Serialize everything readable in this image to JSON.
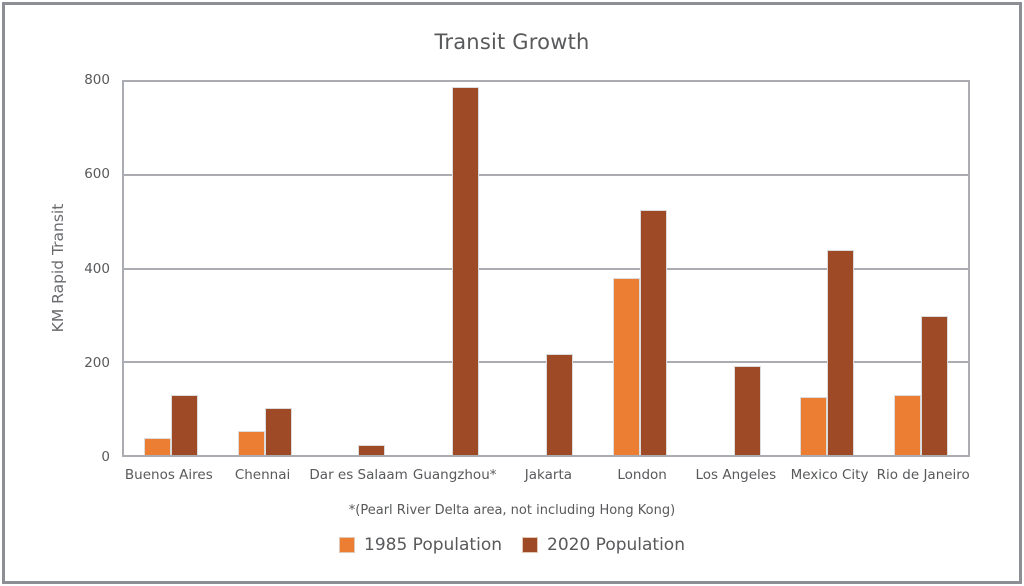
{
  "window": {
    "frame_border_color": "#8d8e94",
    "background_color": "#ffffff"
  },
  "colors": {
    "series_1985": "#EC7E33",
    "series_2020": "#9E4A26",
    "gridline": "#abacb2",
    "text": "#58595b"
  },
  "chart_data": {
    "type": "bar",
    "title": "Transit Growth",
    "ylabel": "KM Rapid Transit",
    "xlabel": "",
    "footnote": "*(Pearl River Delta area, not including Hong Kong)",
    "ylim": [
      0,
      800
    ],
    "yticks": [
      0,
      200,
      400,
      600,
      800
    ],
    "grid": true,
    "legend_position": "bottom",
    "categories": [
      "Buenos Aires",
      "Chennai",
      "Dar es Salaam",
      "Guangzhou*",
      "Jakarta",
      "London",
      "Los Angeles",
      "Mexico City",
      "Rio de Janeiro"
    ],
    "series": [
      {
        "name": "1985 Population",
        "color": "#EC7E33",
        "values": [
          37,
          52,
          0,
          0,
          0,
          380,
          0,
          124,
          129
        ]
      },
      {
        "name": "2020 Population",
        "color": "#9E4A26",
        "values": [
          128,
          100,
          21,
          790,
          216,
          525,
          190,
          440,
          298
        ]
      }
    ]
  }
}
